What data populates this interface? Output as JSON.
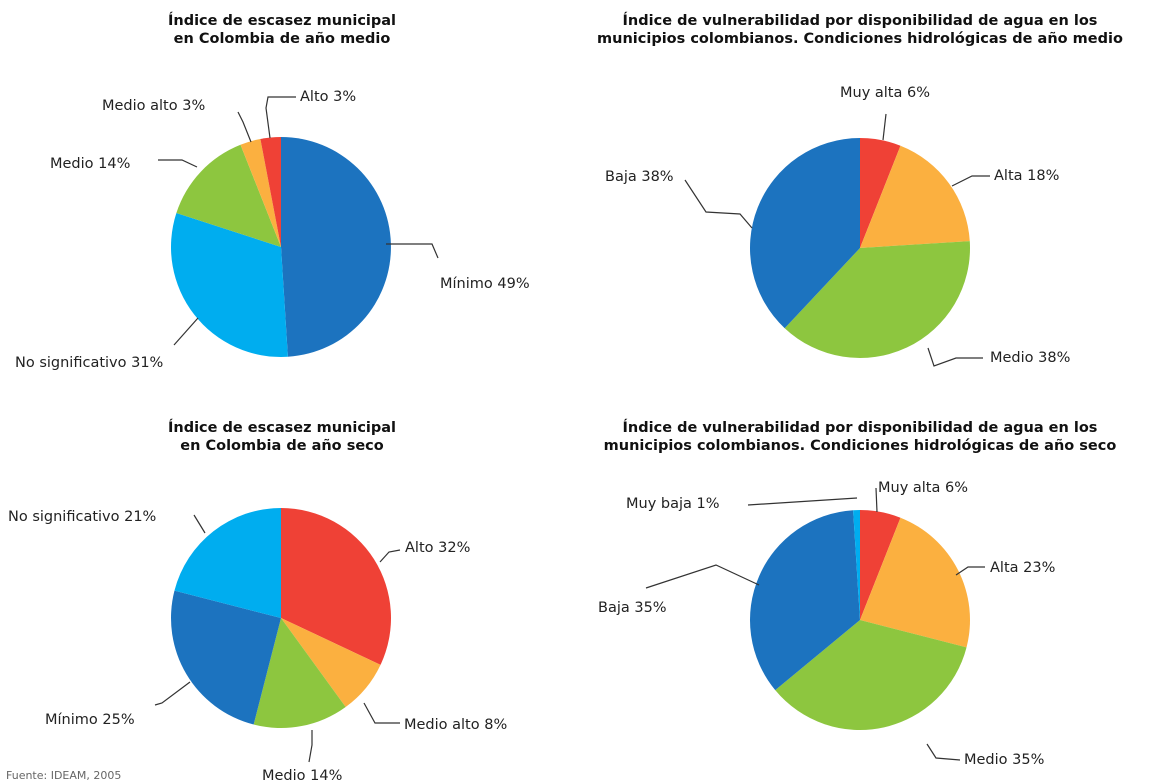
{
  "source": "Fuente: IDEAM, 2005",
  "chart_data": [
    {
      "type": "pie",
      "title": [
        "Índice de escasez municipal",
        "en Colombia de año medio"
      ],
      "slices": [
        {
          "label": "Mínimo 49%",
          "value": 49,
          "color": "#1c73bf"
        },
        {
          "label": "No significativo 31%",
          "value": 31,
          "color": "#00adef"
        },
        {
          "label": "Medio 14%",
          "value": 14,
          "color": "#8dc63f"
        },
        {
          "label": "Medio alto 3%",
          "value": 3,
          "color": "#fbb040"
        },
        {
          "label": "Alto 3%",
          "value": 3,
          "color": "#ef4136"
        }
      ]
    },
    {
      "type": "pie",
      "title": [
        "Índice de vulnerabilidad por disponibilidad de agua en los",
        "municipios colombianos. Condiciones hidrológicas de año medio"
      ],
      "slices": [
        {
          "label": "Muy alta 6%",
          "value": 6,
          "color": "#ef4136"
        },
        {
          "label": "Alta 18%",
          "value": 18,
          "color": "#fbb040"
        },
        {
          "label": "Medio 38%",
          "value": 38,
          "color": "#8dc63f"
        },
        {
          "label": "Baja 38%",
          "value": 38,
          "color": "#1c73bf"
        }
      ]
    },
    {
      "type": "pie",
      "title": [
        "Índice de escasez municipal",
        "en Colombia de año seco"
      ],
      "slices": [
        {
          "label": "Alto 32%",
          "value": 32,
          "color": "#ef4136"
        },
        {
          "label": "Medio alto 8%",
          "value": 8,
          "color": "#fbb040"
        },
        {
          "label": "Medio 14%",
          "value": 14,
          "color": "#8dc63f"
        },
        {
          "label": "Mínimo 25%",
          "value": 25,
          "color": "#1c73bf"
        },
        {
          "label": "No significativo 21%",
          "value": 21,
          "color": "#00adef"
        }
      ]
    },
    {
      "type": "pie",
      "title": [
        "Índice de vulnerabilidad por disponibilidad de agua en los",
        "municipios colombianos. Condiciones hidrológicas de año seco"
      ],
      "slices": [
        {
          "label": "Muy alta 6%",
          "value": 6,
          "color": "#ef4136"
        },
        {
          "label": "Alta 23%",
          "value": 23,
          "color": "#fbb040"
        },
        {
          "label": "Medio 35%",
          "value": 35,
          "color": "#8dc63f"
        },
        {
          "label": "Baja 35%",
          "value": 35,
          "color": "#1c73bf"
        },
        {
          "label": "Muy baja 1%",
          "value": 1,
          "color": "#00adef"
        }
      ]
    }
  ]
}
